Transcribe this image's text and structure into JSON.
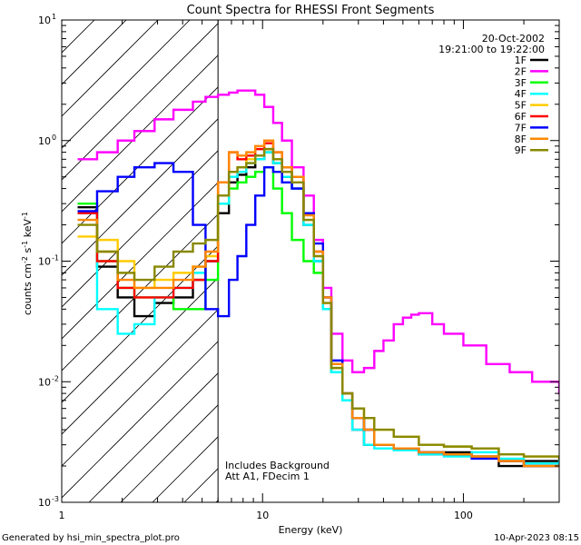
{
  "chart_data": {
    "type": "line",
    "title": "Count Spectra for RHESSI Front Segments",
    "xlabel": "Energy (keV)",
    "ylabel_parts": [
      "counts cm",
      "-2",
      " s",
      "-1",
      " keV",
      "-1"
    ],
    "xscale": "log",
    "yscale": "log",
    "xlim": [
      1,
      300
    ],
    "ylim": [
      0.001,
      10
    ],
    "x_ticks": [
      {
        "value": 1,
        "label": "1"
      },
      {
        "value": 10,
        "label": "10"
      },
      {
        "value": 100,
        "label": "100"
      }
    ],
    "y_ticks": [
      {
        "value": 10,
        "base": "10",
        "exp": "1"
      },
      {
        "value": 1,
        "base": "10",
        "exp": "0"
      },
      {
        "value": 0.1,
        "base": "10",
        "exp": "-1"
      },
      {
        "value": 0.01,
        "base": "10",
        "exp": "-2"
      },
      {
        "value": 0.001,
        "base": "10",
        "exp": "-3"
      }
    ],
    "attenuator_energy": 6,
    "hatched_region": [
      1,
      6
    ],
    "date": "20-Oct-2002",
    "time_range": "19:21:00 to 19:22:00",
    "annotations": [
      "Includes Background",
      "Att A1, FDecim 1"
    ],
    "series": [
      {
        "name": "1F",
        "color": "#000000",
        "x": [
          1.2,
          1.5,
          1.9,
          2.3,
          2.9,
          3.6,
          4.5,
          5.2,
          6.0,
          6.8,
          7.5,
          8.3,
          9.2,
          10.2,
          11.3,
          12.5,
          14,
          16,
          18,
          20,
          22,
          25,
          28,
          32,
          36,
          45,
          60,
          80,
          110,
          150,
          200,
          300
        ],
        "y": [
          0.28,
          0.09,
          0.05,
          0.035,
          0.045,
          0.05,
          0.07,
          0.1,
          0.25,
          0.45,
          0.52,
          0.6,
          0.7,
          0.8,
          0.65,
          0.5,
          0.4,
          0.2,
          0.1,
          0.04,
          0.012,
          0.007,
          0.004,
          0.003,
          0.003,
          0.0028,
          0.0025,
          0.0026,
          0.0024,
          0.002,
          0.0022,
          0.002
        ]
      },
      {
        "name": "2F",
        "color": "#ff00ff",
        "x": [
          1.2,
          1.5,
          1.9,
          2.3,
          2.9,
          3.6,
          4.5,
          5.2,
          6.0,
          6.8,
          7.5,
          8.3,
          9.2,
          10.2,
          11.3,
          12.5,
          14,
          16,
          18,
          20,
          22,
          25,
          28,
          32,
          36,
          40,
          45,
          50,
          55,
          60,
          70,
          80,
          100,
          130,
          170,
          220,
          300
        ],
        "y": [
          0.7,
          0.8,
          1.0,
          1.2,
          1.5,
          1.8,
          2.1,
          2.3,
          2.4,
          2.5,
          2.6,
          2.6,
          2.4,
          1.9,
          1.4,
          1.0,
          0.6,
          0.35,
          0.15,
          0.06,
          0.025,
          0.015,
          0.012,
          0.013,
          0.018,
          0.022,
          0.03,
          0.034,
          0.036,
          0.037,
          0.03,
          0.025,
          0.02,
          0.014,
          0.012,
          0.01,
          0.008
        ]
      },
      {
        "name": "3F",
        "color": "#00ff00",
        "x": [
          1.2,
          1.5,
          1.9,
          2.3,
          2.9,
          3.6,
          4.5,
          5.2,
          6.0,
          6.8,
          7.5,
          8.3,
          9.2,
          10.2,
          11.3,
          12.5,
          14,
          16,
          18,
          20,
          22,
          25,
          28,
          32,
          36,
          45,
          60,
          80,
          110,
          150,
          200,
          300
        ],
        "y": [
          0.3,
          0.1,
          0.06,
          0.05,
          0.05,
          0.04,
          0.04,
          0.07,
          0.3,
          0.4,
          0.45,
          0.5,
          0.55,
          0.6,
          0.4,
          0.25,
          0.15,
          0.1,
          0.08,
          0.04,
          0.012,
          0.007,
          0.005,
          0.004,
          0.003,
          0.0028,
          0.0026,
          0.0025,
          0.0024,
          0.0022,
          0.002,
          0.0021
        ]
      },
      {
        "name": "4F",
        "color": "#00ffff",
        "x": [
          1.2,
          1.5,
          1.9,
          2.3,
          2.9,
          3.6,
          4.5,
          5.2,
          6.0,
          6.8,
          7.5,
          8.3,
          9.2,
          10.2,
          11.3,
          12.5,
          14,
          16,
          18,
          20,
          22,
          25,
          28,
          32,
          36,
          45,
          60,
          80,
          110,
          150,
          200,
          300
        ],
        "y": [
          0.25,
          0.04,
          0.025,
          0.03,
          0.05,
          0.06,
          0.08,
          0.1,
          0.3,
          0.5,
          0.55,
          0.65,
          0.7,
          0.8,
          0.65,
          0.5,
          0.4,
          0.2,
          0.1,
          0.04,
          0.012,
          0.007,
          0.004,
          0.003,
          0.0028,
          0.0027,
          0.0025,
          0.0024,
          0.0026,
          0.0023,
          0.0021,
          0.0022
        ]
      },
      {
        "name": "5F",
        "color": "#ffcc00",
        "x": [
          1.2,
          1.5,
          1.9,
          2.3,
          2.9,
          3.6,
          4.5,
          5.2,
          6.0,
          6.8,
          7.5,
          8.3,
          9.2,
          10.2,
          11.3,
          12.5,
          14,
          16,
          18,
          20,
          22,
          25,
          28,
          32,
          36,
          45,
          60,
          80,
          110,
          150,
          200,
          300
        ],
        "y": [
          0.16,
          0.15,
          0.1,
          0.06,
          0.07,
          0.08,
          0.09,
          0.11,
          0.35,
          0.55,
          0.6,
          0.7,
          0.75,
          0.85,
          0.7,
          0.55,
          0.45,
          0.22,
          0.11,
          0.045,
          0.013,
          0.008,
          0.006,
          0.005,
          0.004,
          0.0035,
          0.003,
          0.0029,
          0.0028,
          0.0025,
          0.0024,
          0.0023
        ]
      },
      {
        "name": "6F",
        "color": "#ff0000",
        "x": [
          1.2,
          1.5,
          1.9,
          2.3,
          2.9,
          3.6,
          4.5,
          5.2,
          6.0,
          6.8,
          7.5,
          8.3,
          9.2,
          10.2,
          11.3,
          12.5,
          14,
          16,
          18,
          20,
          22,
          25,
          28,
          32,
          36,
          45,
          60,
          80,
          110,
          150,
          200,
          300
        ],
        "y": [
          0.25,
          0.1,
          0.06,
          0.05,
          0.05,
          0.06,
          0.07,
          0.1,
          0.45,
          0.8,
          0.7,
          0.75,
          0.85,
          0.95,
          0.8,
          0.6,
          0.5,
          0.25,
          0.12,
          0.05,
          0.014,
          0.008,
          0.005,
          0.004,
          0.003,
          0.0028,
          0.0026,
          0.0025,
          0.0024,
          0.0022,
          0.002,
          0.002
        ]
      },
      {
        "name": "7F",
        "color": "#0000ff",
        "x": [
          1.2,
          1.5,
          1.9,
          2.3,
          2.9,
          3.6,
          4.5,
          5.2,
          6.0,
          6.8,
          7.5,
          8.3,
          9.2,
          10.2,
          11.3,
          12.5,
          14,
          16,
          18,
          20,
          22,
          25,
          28,
          32,
          36,
          45,
          60,
          80,
          110,
          150,
          200,
          300
        ],
        "y": [
          0.26,
          0.38,
          0.5,
          0.6,
          0.65,
          0.55,
          0.2,
          0.04,
          0.035,
          0.07,
          0.11,
          0.2,
          0.35,
          0.6,
          0.55,
          0.45,
          0.4,
          0.25,
          0.14,
          0.05,
          0.015,
          0.008,
          0.005,
          0.004,
          0.003,
          0.0028,
          0.0026,
          0.0025,
          0.0023,
          0.0022,
          0.002,
          0.002
        ]
      },
      {
        "name": "8F",
        "color": "#ff8800",
        "x": [
          1.2,
          1.5,
          1.9,
          2.3,
          2.9,
          3.6,
          4.5,
          5.2,
          6.0,
          6.8,
          7.5,
          8.3,
          9.2,
          10.2,
          11.3,
          12.5,
          14,
          16,
          18,
          20,
          22,
          25,
          28,
          32,
          36,
          45,
          60,
          80,
          110,
          150,
          200,
          300
        ],
        "y": [
          0.22,
          0.12,
          0.07,
          0.06,
          0.06,
          0.07,
          0.09,
          0.12,
          0.45,
          0.8,
          0.75,
          0.8,
          0.9,
          1.0,
          0.8,
          0.6,
          0.5,
          0.24,
          0.12,
          0.05,
          0.014,
          0.008,
          0.005,
          0.004,
          0.003,
          0.0028,
          0.0026,
          0.0025,
          0.0024,
          0.0022,
          0.002,
          0.002
        ]
      },
      {
        "name": "9F",
        "color": "#888800",
        "x": [
          1.2,
          1.5,
          1.9,
          2.3,
          2.9,
          3.6,
          4.5,
          5.2,
          6.0,
          6.8,
          7.5,
          8.3,
          9.2,
          10.2,
          11.3,
          12.5,
          14,
          16,
          18,
          20,
          22,
          25,
          28,
          32,
          36,
          45,
          60,
          80,
          110,
          150,
          200,
          300
        ],
        "y": [
          0.2,
          0.12,
          0.08,
          0.07,
          0.09,
          0.12,
          0.14,
          0.15,
          0.35,
          0.55,
          0.6,
          0.65,
          0.75,
          0.85,
          0.7,
          0.55,
          0.45,
          0.22,
          0.11,
          0.045,
          0.013,
          0.008,
          0.006,
          0.005,
          0.004,
          0.0035,
          0.003,
          0.0029,
          0.0028,
          0.0025,
          0.0024,
          0.0023
        ]
      }
    ]
  },
  "footer": {
    "generator": "Generated by hsi_min_spectra_plot.pro",
    "timestamp": "10-Apr-2023 08:15"
  }
}
